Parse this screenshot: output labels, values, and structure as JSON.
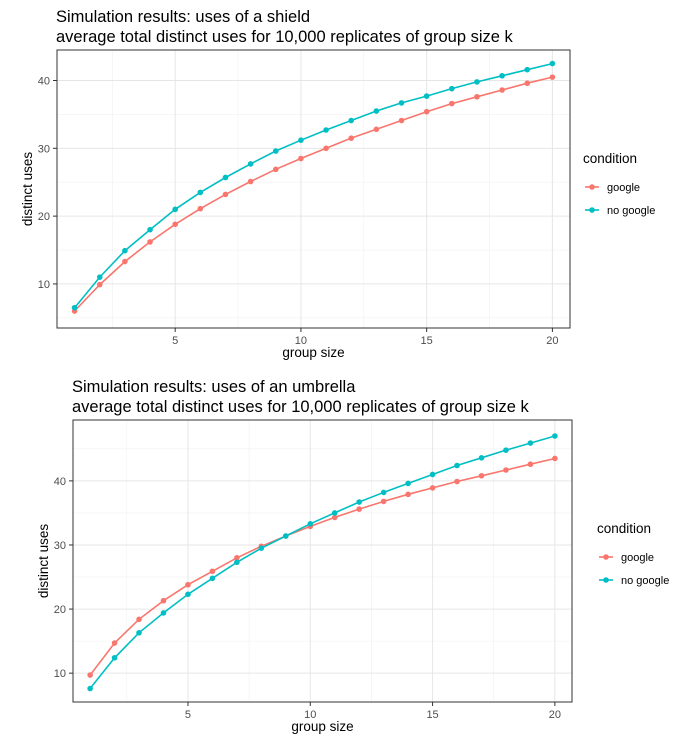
{
  "chart_data": [
    {
      "type": "line",
      "title": "Simulation results: uses of a shield",
      "subtitle": "average total distinct uses for 10,000 replicates of group size k",
      "xlabel": "group size",
      "ylabel": "distinct uses",
      "xlim": [
        0.3,
        20.7
      ],
      "ylim": [
        3.5,
        44.5
      ],
      "xticks": [
        5,
        10,
        15,
        20
      ],
      "yticks": [
        10,
        20,
        30,
        40
      ],
      "grid": true,
      "legend": {
        "title": "condition",
        "position": "right"
      },
      "x": [
        1,
        2,
        3,
        4,
        5,
        6,
        7,
        8,
        9,
        10,
        11,
        12,
        13,
        14,
        15,
        16,
        17,
        18,
        19,
        20
      ],
      "series": [
        {
          "name": "google",
          "color": "#F8766D",
          "values": [
            6.0,
            9.9,
            13.3,
            16.2,
            18.8,
            21.1,
            23.2,
            25.1,
            26.9,
            28.5,
            30.0,
            31.5,
            32.8,
            34.1,
            35.4,
            36.6,
            37.6,
            38.6,
            39.6,
            40.5
          ]
        },
        {
          "name": "no google",
          "color": "#00BFC4",
          "values": [
            6.5,
            11.0,
            14.9,
            18.0,
            21.0,
            23.5,
            25.7,
            27.7,
            29.6,
            31.2,
            32.7,
            34.1,
            35.5,
            36.7,
            37.7,
            38.8,
            39.8,
            40.7,
            41.6,
            42.5
          ]
        }
      ]
    },
    {
      "type": "line",
      "title": "Simulation results: uses of an umbrella",
      "subtitle": "average total distinct uses for 10,000 replicates of group size k",
      "xlabel": "group size",
      "ylabel": "distinct uses",
      "xlim": [
        0.3,
        20.7
      ],
      "ylim": [
        5.5,
        49.5
      ],
      "xticks": [
        5,
        10,
        15,
        20
      ],
      "yticks": [
        10,
        20,
        30,
        40
      ],
      "grid": true,
      "legend": {
        "title": "condition",
        "position": "right"
      },
      "x": [
        1,
        2,
        3,
        4,
        5,
        6,
        7,
        8,
        9,
        10,
        11,
        12,
        13,
        14,
        15,
        16,
        17,
        18,
        19,
        20
      ],
      "series": [
        {
          "name": "google",
          "color": "#F8766D",
          "values": [
            9.7,
            14.7,
            18.4,
            21.3,
            23.8,
            25.9,
            28.0,
            29.8,
            31.4,
            32.9,
            34.3,
            35.6,
            36.8,
            37.9,
            38.9,
            39.9,
            40.8,
            41.7,
            42.6,
            43.5
          ]
        },
        {
          "name": "no google",
          "color": "#00BFC4",
          "values": [
            7.6,
            12.4,
            16.3,
            19.4,
            22.3,
            24.8,
            27.3,
            29.5,
            31.4,
            33.3,
            35.0,
            36.7,
            38.2,
            39.6,
            41.0,
            42.4,
            43.6,
            44.8,
            45.9,
            47.0
          ]
        }
      ]
    }
  ]
}
